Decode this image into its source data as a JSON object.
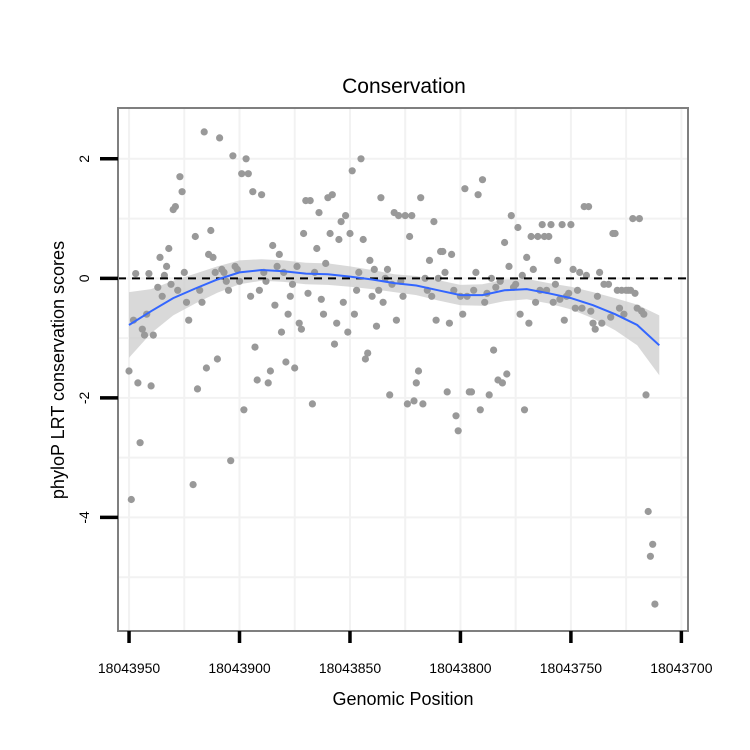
{
  "chart_data": {
    "type": "scatter",
    "title": "Conservation",
    "xlabel": "Genomic Position",
    "ylabel": "phyloP LRT conservation scores",
    "x_reversed": true,
    "xlim": [
      18043955,
      18043697
    ],
    "ylim": [
      -5.9,
      2.85
    ],
    "x_ticks": [
      18043950,
      18043900,
      18043850,
      18043800,
      18043750,
      18043700
    ],
    "y_ticks": [
      2,
      0,
      -2,
      -4
    ],
    "grid": true,
    "legend": "none",
    "reference_line": {
      "y": 0,
      "style": "dashed"
    },
    "colors": {
      "points": "#999999",
      "smooth": "#3366ff",
      "ribbon": "#cccccc",
      "panel_border": "#7f7f7f",
      "grid": "#f2f2f2"
    },
    "points": [
      [
        18043950,
        -1.55
      ],
      [
        18043949,
        -3.7
      ],
      [
        18043948,
        -0.7
      ],
      [
        18043947,
        0.08
      ],
      [
        18043946,
        -1.75
      ],
      [
        18043945,
        -2.75
      ],
      [
        18043944,
        -0.85
      ],
      [
        18043943,
        -0.95
      ],
      [
        18043942,
        -0.6
      ],
      [
        18043941,
        0.08
      ],
      [
        18043940,
        -1.8
      ],
      [
        18043939,
        -0.95
      ],
      [
        18043937,
        -0.15
      ],
      [
        18043936,
        0.35
      ],
      [
        18043935,
        -0.3
      ],
      [
        18043934,
        0.05
      ],
      [
        18043933,
        0.2
      ],
      [
        18043932,
        0.5
      ],
      [
        18043931,
        -0.1
      ],
      [
        18043930,
        1.15
      ],
      [
        18043929,
        1.2
      ],
      [
        18043928,
        -0.2
      ],
      [
        18043927,
        1.7
      ],
      [
        18043926,
        1.45
      ],
      [
        18043925,
        0.1
      ],
      [
        18043924,
        -0.4
      ],
      [
        18043923,
        -0.7
      ],
      [
        18043921,
        -3.45
      ],
      [
        18043920,
        0.7
      ],
      [
        18043919,
        -1.85
      ],
      [
        18043918,
        -0.2
      ],
      [
        18043917,
        -0.4
      ],
      [
        18043916,
        2.45
      ],
      [
        18043915,
        -1.5
      ],
      [
        18043914,
        0.4
      ],
      [
        18043913,
        0.8
      ],
      [
        18043912,
        0.35
      ],
      [
        18043911,
        0.1
      ],
      [
        18043910,
        -1.35
      ],
      [
        18043909,
        2.35
      ],
      [
        18043908,
        0.15
      ],
      [
        18043907,
        0.1
      ],
      [
        18043906,
        -0.05
      ],
      [
        18043905,
        -0.2
      ],
      [
        18043904,
        -3.05
      ],
      [
        18043903,
        2.05
      ],
      [
        18043902,
        0.2
      ],
      [
        18043901,
        0.15
      ],
      [
        18043900,
        -0.05
      ],
      [
        18043899,
        1.75
      ],
      [
        18043898,
        -2.2
      ],
      [
        18043897,
        2.0
      ],
      [
        18043896,
        1.75
      ],
      [
        18043895,
        -0.3
      ],
      [
        18043894,
        1.45
      ],
      [
        18043893,
        -1.15
      ],
      [
        18043892,
        -1.7
      ],
      [
        18043891,
        -0.2
      ],
      [
        18043890,
        1.4
      ],
      [
        18043889,
        0.1
      ],
      [
        18043888,
        -0.05
      ],
      [
        18043887,
        -1.75
      ],
      [
        18043886,
        -1.55
      ],
      [
        18043885,
        0.55
      ],
      [
        18043884,
        -0.45
      ],
      [
        18043883,
        0.2
      ],
      [
        18043882,
        0.4
      ],
      [
        18043881,
        -0.9
      ],
      [
        18043880,
        0.1
      ],
      [
        18043879,
        -1.4
      ],
      [
        18043878,
        -0.6
      ],
      [
        18043877,
        -0.3
      ],
      [
        18043876,
        -0.1
      ],
      [
        18043875,
        -1.5
      ],
      [
        18043874,
        0.2
      ],
      [
        18043873,
        -0.75
      ],
      [
        18043872,
        -0.85
      ],
      [
        18043871,
        0.75
      ],
      [
        18043870,
        1.3
      ],
      [
        18043869,
        -0.25
      ],
      [
        18043868,
        1.3
      ],
      [
        18043867,
        -2.1
      ],
      [
        18043866,
        0.1
      ],
      [
        18043865,
        0.5
      ],
      [
        18043864,
        1.1
      ],
      [
        18043863,
        -0.35
      ],
      [
        18043862,
        -0.6
      ],
      [
        18043861,
        0.25
      ],
      [
        18043860,
        1.35
      ],
      [
        18043859,
        0.75
      ],
      [
        18043858,
        1.4
      ],
      [
        18043857,
        -1.1
      ],
      [
        18043856,
        -0.75
      ],
      [
        18043855,
        0.65
      ],
      [
        18043854,
        0.95
      ],
      [
        18043853,
        -0.4
      ],
      [
        18043852,
        1.05
      ],
      [
        18043851,
        -0.9
      ],
      [
        18043850,
        0.75
      ],
      [
        18043849,
        1.8
      ],
      [
        18043848,
        -0.6
      ],
      [
        18043847,
        -0.2
      ],
      [
        18043846,
        0.1
      ],
      [
        18043845,
        2.0
      ],
      [
        18043844,
        0.65
      ],
      [
        18043843,
        -1.35
      ],
      [
        18043842,
        -1.25
      ],
      [
        18043841,
        0.3
      ],
      [
        18043840,
        -0.3
      ],
      [
        18043839,
        0.15
      ],
      [
        18043838,
        -0.8
      ],
      [
        18043837,
        -0.2
      ],
      [
        18043836,
        1.35
      ],
      [
        18043835,
        -0.4
      ],
      [
        18043834,
        0.0
      ],
      [
        18043833,
        0.15
      ],
      [
        18043832,
        -1.95
      ],
      [
        18043831,
        -0.1
      ],
      [
        18043830,
        1.1
      ],
      [
        18043829,
        -0.7
      ],
      [
        18043828,
        1.05
      ],
      [
        18043827,
        -0.05
      ],
      [
        18043826,
        -0.3
      ],
      [
        18043825,
        1.05
      ],
      [
        18043824,
        -2.1
      ],
      [
        18043823,
        0.7
      ],
      [
        18043822,
        1.05
      ],
      [
        18043821,
        -2.05
      ],
      [
        18043820,
        -1.75
      ],
      [
        18043819,
        -1.55
      ],
      [
        18043818,
        1.35
      ],
      [
        18043817,
        -2.1
      ],
      [
        18043816,
        0.0
      ],
      [
        18043815,
        -0.2
      ],
      [
        18043814,
        0.3
      ],
      [
        18043813,
        -0.3
      ],
      [
        18043812,
        0.95
      ],
      [
        18043811,
        -0.7
      ],
      [
        18043810,
        0.0
      ],
      [
        18043809,
        0.45
      ],
      [
        18043808,
        0.45
      ],
      [
        18043807,
        0.1
      ],
      [
        18043806,
        -1.9
      ],
      [
        18043805,
        -0.75
      ],
      [
        18043804,
        0.4
      ],
      [
        18043803,
        -0.2
      ],
      [
        18043802,
        -2.3
      ],
      [
        18043801,
        -2.55
      ],
      [
        18043800,
        -0.3
      ],
      [
        18043799,
        -0.6
      ],
      [
        18043798,
        1.5
      ],
      [
        18043797,
        -0.3
      ],
      [
        18043796,
        -1.9
      ],
      [
        18043795,
        -1.9
      ],
      [
        18043794,
        -0.2
      ],
      [
        18043793,
        0.1
      ],
      [
        18043792,
        1.4
      ],
      [
        18043791,
        -2.2
      ],
      [
        18043790,
        1.65
      ],
      [
        18043789,
        -0.4
      ],
      [
        18043788,
        -0.25
      ],
      [
        18043787,
        -1.95
      ],
      [
        18043786,
        0.0
      ],
      [
        18043785,
        -1.2
      ],
      [
        18043784,
        -0.15
      ],
      [
        18043783,
        -1.7
      ],
      [
        18043782,
        -0.05
      ],
      [
        18043781,
        -1.75
      ],
      [
        18043780,
        0.6
      ],
      [
        18043779,
        -1.6
      ],
      [
        18043778,
        0.2
      ],
      [
        18043777,
        1.05
      ],
      [
        18043776,
        -0.15
      ],
      [
        18043775,
        -0.1
      ],
      [
        18043774,
        0.85
      ],
      [
        18043773,
        -0.6
      ],
      [
        18043772,
        0.05
      ],
      [
        18043771,
        -2.2
      ],
      [
        18043770,
        0.35
      ],
      [
        18043769,
        -0.75
      ],
      [
        18043768,
        0.7
      ],
      [
        18043767,
        0.15
      ],
      [
        18043766,
        -0.4
      ],
      [
        18043765,
        0.7
      ],
      [
        18043764,
        -0.2
      ],
      [
        18043763,
        0.9
      ],
      [
        18043762,
        0.7
      ],
      [
        18043761,
        -0.2
      ],
      [
        18043760,
        0.7
      ],
      [
        18043759,
        0.9
      ],
      [
        18043758,
        -0.4
      ],
      [
        18043757,
        -0.1
      ],
      [
        18043756,
        0.3
      ],
      [
        18043755,
        -0.35
      ],
      [
        18043754,
        0.9
      ],
      [
        18043753,
        -0.7
      ],
      [
        18043752,
        -0.3
      ],
      [
        18043751,
        -0.25
      ],
      [
        18043750,
        0.9
      ],
      [
        18043749,
        0.15
      ],
      [
        18043748,
        -0.5
      ],
      [
        18043747,
        -0.2
      ],
      [
        18043746,
        0.1
      ],
      [
        18043745,
        -0.5
      ],
      [
        18043744,
        1.2
      ],
      [
        18043743,
        0.05
      ],
      [
        18043742,
        1.2
      ],
      [
        18043741,
        -0.55
      ],
      [
        18043740,
        -0.75
      ],
      [
        18043739,
        -0.85
      ],
      [
        18043738,
        -0.3
      ],
      [
        18043737,
        0.1
      ],
      [
        18043736,
        -0.75
      ],
      [
        18043735,
        -0.1
      ],
      [
        18043733,
        -0.1
      ],
      [
        18043732,
        -0.65
      ],
      [
        18043731,
        0.75
      ],
      [
        18043730,
        0.75
      ],
      [
        18043729,
        -0.2
      ],
      [
        18043728,
        -0.5
      ],
      [
        18043727,
        -0.2
      ],
      [
        18043726,
        -0.6
      ],
      [
        18043725,
        -0.2
      ],
      [
        18043724,
        -0.2
      ],
      [
        18043723,
        -0.2
      ],
      [
        18043722,
        1.0
      ],
      [
        18043721,
        -0.25
      ],
      [
        18043720,
        -0.5
      ],
      [
        18043719,
        1.0
      ],
      [
        18043718,
        -0.55
      ],
      [
        18043717,
        -0.6
      ],
      [
        18043716,
        -1.95
      ],
      [
        18043715,
        -3.9
      ],
      [
        18043714,
        -4.65
      ],
      [
        18043713,
        -4.45
      ],
      [
        18043712,
        -5.45
      ]
    ],
    "smooth": {
      "x": [
        18043950,
        18043940,
        18043930,
        18043920,
        18043910,
        18043900,
        18043890,
        18043880,
        18043870,
        18043860,
        18043850,
        18043840,
        18043830,
        18043820,
        18043810,
        18043800,
        18043790,
        18043780,
        18043770,
        18043760,
        18043750,
        18043740,
        18043730,
        18043720,
        18043715,
        18043710
      ],
      "y": [
        -0.78,
        -0.55,
        -0.33,
        -0.17,
        -0.02,
        0.1,
        0.14,
        0.12,
        0.08,
        0.07,
        0.03,
        -0.02,
        -0.08,
        -0.12,
        -0.2,
        -0.28,
        -0.28,
        -0.2,
        -0.18,
        -0.25,
        -0.33,
        -0.45,
        -0.6,
        -0.78,
        -0.95,
        -1.12
      ],
      "ymin": [
        -1.33,
        -0.92,
        -0.62,
        -0.42,
        -0.24,
        -0.1,
        -0.04,
        -0.06,
        -0.1,
        -0.11,
        -0.14,
        -0.18,
        -0.23,
        -0.28,
        -0.37,
        -0.45,
        -0.46,
        -0.38,
        -0.35,
        -0.42,
        -0.52,
        -0.67,
        -0.87,
        -1.12,
        -1.37,
        -1.62
      ],
      "ymax": [
        -0.23,
        -0.18,
        -0.04,
        0.08,
        0.2,
        0.3,
        0.32,
        0.3,
        0.26,
        0.25,
        0.2,
        0.14,
        0.07,
        0.04,
        -0.03,
        -0.11,
        -0.1,
        -0.02,
        -0.01,
        -0.08,
        -0.14,
        -0.23,
        -0.33,
        -0.44,
        -0.53,
        -0.62
      ]
    }
  }
}
